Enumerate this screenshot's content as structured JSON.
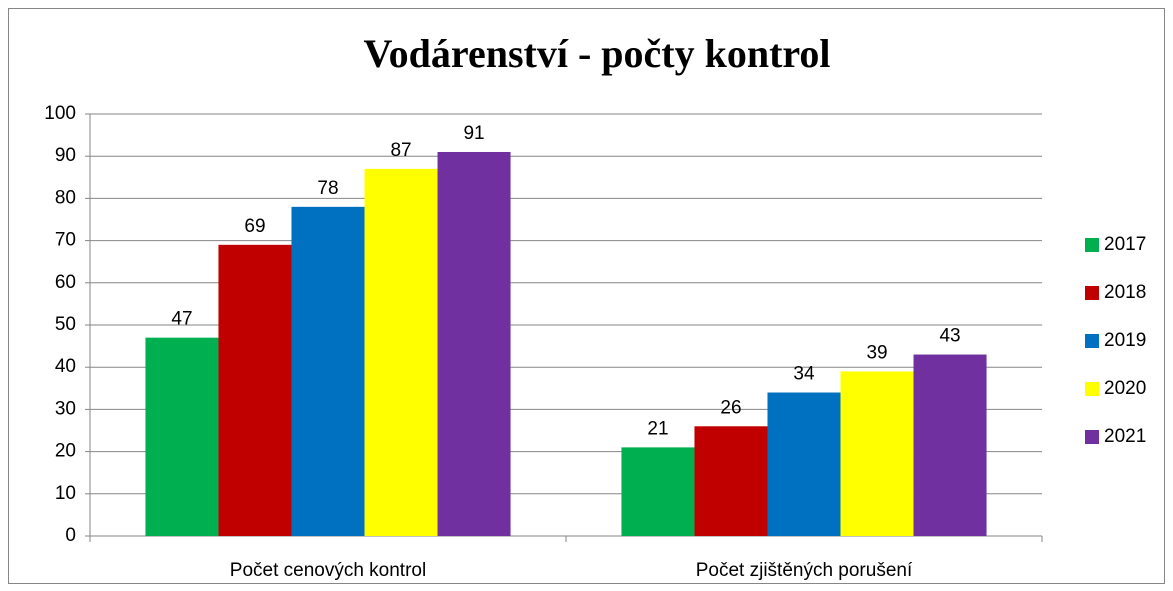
{
  "chart_data": {
    "type": "bar",
    "title": "Vodárenství - počty kontrol",
    "categories": [
      "Počet cenových kontrol",
      "Počet zjištěných porušení"
    ],
    "series": [
      {
        "name": "2017",
        "color": "#00b050",
        "values": [
          47,
          21
        ]
      },
      {
        "name": "2018",
        "color": "#c00000",
        "values": [
          69,
          26
        ]
      },
      {
        "name": "2019",
        "color": "#0070c0",
        "values": [
          78,
          34
        ]
      },
      {
        "name": "2020",
        "color": "#ffff00",
        "values": [
          87,
          39
        ]
      },
      {
        "name": "2021",
        "color": "#7030a0",
        "values": [
          91,
          43
        ]
      }
    ],
    "ylim": [
      0,
      100
    ],
    "yticks": [
      0,
      10,
      20,
      30,
      40,
      50,
      60,
      70,
      80,
      90,
      100
    ],
    "grid": true,
    "legend": "right"
  }
}
